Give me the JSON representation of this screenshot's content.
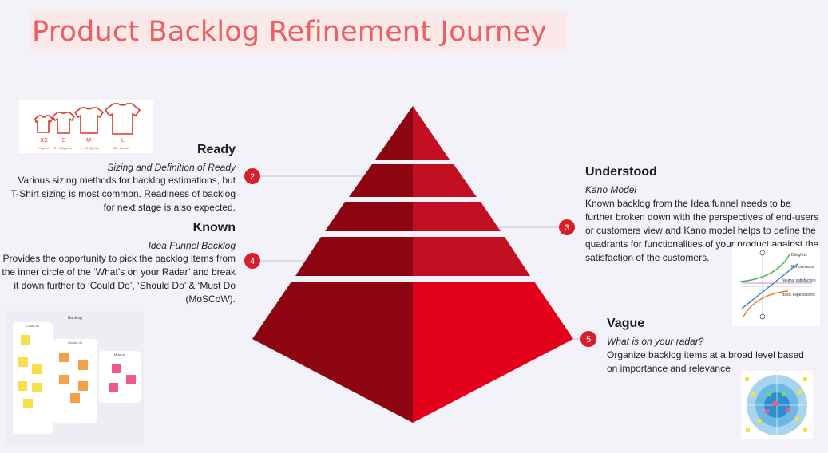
{
  "title": "Product Backlog Refinement Journey",
  "colors": {
    "title": "#ec5f5f",
    "pyramid_dark": "#8e0512",
    "pyramid_light": "#c30f22",
    "badge": "#d81e2a",
    "background": "#f3f2f9"
  },
  "stages": [
    {
      "badge": "2",
      "heading": "Ready",
      "subtitle": "Sizing and Definition of Ready",
      "body": "Various sizing methods for backlog estimations, but T-Shirt sizing is most common. Readiness of backlog for next stage is also expected."
    },
    {
      "badge": "4",
      "heading": "Known",
      "subtitle": "Idea Funnel Backlog",
      "body": "Provides the opportunity to pick the backlog items from the inner circle of the ‘What’s on your Radar’ and break it down further to ‘Could Do’, ‘Should Do’ & ‘Must Do (MoSCoW)."
    },
    {
      "badge": "3",
      "heading": "Understood",
      "subtitle": "Kano Model",
      "body": "Known backlog from the Idea funnel needs to be further broken down with the perspectives of end-users or customers view and Kano model helps to define the quadrants for functionalities of your product against the satisfaction of the customers."
    },
    {
      "badge": "5",
      "heading": "Vague",
      "subtitle": "What is on your radar?",
      "body": "Organize backlog items at a broad level based on importance and relevance"
    }
  ],
  "tshirt": {
    "sizes": [
      "XS",
      "S",
      "M",
      "L"
    ],
    "captions": [
      "1 Sprint",
      "2 - 4 Sprints",
      "4 - 12 Sprints",
      "12+ Sprints"
    ]
  },
  "backlog_board": {
    "title": "Backlog",
    "columns": [
      "Could do",
      "Should do",
      "Must do"
    ]
  },
  "kano": {
    "labels": [
      "Delighter",
      "Performance",
      "Neutral satisfaction",
      "Basic expectations"
    ]
  }
}
